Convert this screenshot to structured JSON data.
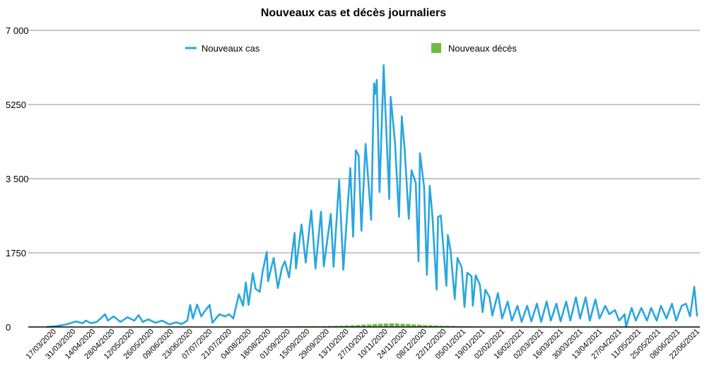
{
  "chart_data": {
    "type": "line",
    "title": "Nouveaux cas et décès journaliers",
    "xlabel": "",
    "ylabel": "",
    "ylim": [
      0,
      7000
    ],
    "yticks": [
      "0",
      "1750",
      "3 500",
      "5250",
      "7 000"
    ],
    "ytick_values": [
      0,
      1750,
      3500,
      5250,
      7000
    ],
    "grid": true,
    "legend_placement": "top",
    "x_unit": "days since start of series (one tick label every 14 days)",
    "x_range": [
      0,
      467
    ],
    "xticks": [
      "17/03/2020",
      "31/03/2020",
      "14/04/2020",
      "28/04/2020",
      "12/05/2020",
      "26/05/2020",
      "09/06/2020",
      "23/06/2020",
      "07/07/2020",
      "21/07/2020",
      "04/08/2020",
      "18/08/2020",
      "01/09/2020",
      "15/09/2020",
      "29/09/2020",
      "13/10/2020",
      "27/10/2020",
      "10/11/2020",
      "24/11/2020",
      "08/12/2020",
      "22/12/2020",
      "05/01/2021",
      "19/01/2021",
      "02/02/2021",
      "16/02/2021",
      "02/03/2021",
      "16/03/2021",
      "30/03/2021",
      "13/04/2021",
      "27/04/2021",
      "11/05/2021",
      "25/05/2021",
      "08/06/2021",
      "22/06/2021"
    ],
    "xtick_first_day": 4,
    "xtick_step_days": 14,
    "series": [
      {
        "name": "Nouveaux cas",
        "kind": "line",
        "color": "#2aa6df",
        "points": [
          [
            0,
            0
          ],
          [
            7,
            20
          ],
          [
            14,
            60
          ],
          [
            21,
            130
          ],
          [
            26,
            90
          ],
          [
            28,
            150
          ],
          [
            32,
            90
          ],
          [
            36,
            120
          ],
          [
            42,
            300
          ],
          [
            44,
            150
          ],
          [
            48,
            250
          ],
          [
            53,
            120
          ],
          [
            58,
            230
          ],
          [
            63,
            150
          ],
          [
            66,
            280
          ],
          [
            69,
            120
          ],
          [
            73,
            180
          ],
          [
            78,
            100
          ],
          [
            83,
            150
          ],
          [
            88,
            60
          ],
          [
            93,
            110
          ],
          [
            97,
            70
          ],
          [
            101,
            150
          ],
          [
            103,
            520
          ],
          [
            105,
            200
          ],
          [
            108,
            530
          ],
          [
            111,
            250
          ],
          [
            113,
            350
          ],
          [
            117,
            520
          ],
          [
            119,
            100
          ],
          [
            124,
            300
          ],
          [
            128,
            250
          ],
          [
            131,
            300
          ],
          [
            134,
            200
          ],
          [
            138,
            770
          ],
          [
            141,
            500
          ],
          [
            143,
            1050
          ],
          [
            145,
            520
          ],
          [
            148,
            1270
          ],
          [
            150,
            900
          ],
          [
            153,
            830
          ],
          [
            155,
            1300
          ],
          [
            158,
            1770
          ],
          [
            159,
            1080
          ],
          [
            163,
            1630
          ],
          [
            166,
            920
          ],
          [
            169,
            1400
          ],
          [
            171,
            1550
          ],
          [
            174,
            1170
          ],
          [
            178,
            2220
          ],
          [
            179,
            1380
          ],
          [
            183,
            2420
          ],
          [
            186,
            1520
          ],
          [
            190,
            2750
          ],
          [
            193,
            1380
          ],
          [
            197,
            2720
          ],
          [
            199,
            1430
          ],
          [
            204,
            2670
          ],
          [
            206,
            1420
          ],
          [
            210,
            3470
          ],
          [
            213,
            1350
          ],
          [
            218,
            3750
          ],
          [
            220,
            2130
          ],
          [
            222,
            4170
          ],
          [
            224,
            4050
          ],
          [
            226,
            2270
          ],
          [
            229,
            4320
          ],
          [
            233,
            2530
          ],
          [
            235,
            5750
          ],
          [
            236,
            5500
          ],
          [
            237,
            5830
          ],
          [
            239,
            3180
          ],
          [
            242,
            6180
          ],
          [
            243,
            5300
          ],
          [
            246,
            3020
          ],
          [
            247,
            5430
          ],
          [
            250,
            4400
          ],
          [
            253,
            2600
          ],
          [
            255,
            4970
          ],
          [
            257,
            4200
          ],
          [
            260,
            2550
          ],
          [
            262,
            3700
          ],
          [
            265,
            3400
          ],
          [
            267,
            1550
          ],
          [
            268,
            4100
          ],
          [
            271,
            3300
          ],
          [
            273,
            1230
          ],
          [
            275,
            3330
          ],
          [
            277,
            2600
          ],
          [
            280,
            880
          ],
          [
            281,
            2600
          ],
          [
            283,
            2630
          ],
          [
            287,
            970
          ],
          [
            288,
            2170
          ],
          [
            290,
            1800
          ],
          [
            293,
            660
          ],
          [
            295,
            1630
          ],
          [
            298,
            1400
          ],
          [
            300,
            470
          ],
          [
            302,
            1280
          ],
          [
            305,
            1200
          ],
          [
            306,
            500
          ],
          [
            308,
            1220
          ],
          [
            311,
            1000
          ],
          [
            313,
            350
          ],
          [
            315,
            880
          ],
          [
            318,
            700
          ],
          [
            320,
            270
          ],
          [
            324,
            800
          ],
          [
            327,
            200
          ],
          [
            331,
            600
          ],
          [
            334,
            150
          ],
          [
            338,
            500
          ],
          [
            341,
            120
          ],
          [
            345,
            500
          ],
          [
            348,
            130
          ],
          [
            352,
            550
          ],
          [
            355,
            120
          ],
          [
            359,
            600
          ],
          [
            362,
            150
          ],
          [
            366,
            550
          ],
          [
            369,
            130
          ],
          [
            373,
            600
          ],
          [
            376,
            150
          ],
          [
            380,
            700
          ],
          [
            383,
            200
          ],
          [
            387,
            700
          ],
          [
            390,
            150
          ],
          [
            394,
            650
          ],
          [
            397,
            200
          ],
          [
            401,
            500
          ],
          [
            404,
            300
          ],
          [
            408,
            400
          ],
          [
            411,
            150
          ],
          [
            415,
            300
          ],
          [
            416,
            0
          ],
          [
            420,
            450
          ],
          [
            423,
            150
          ],
          [
            427,
            450
          ],
          [
            431,
            150
          ],
          [
            434,
            450
          ],
          [
            438,
            150
          ],
          [
            441,
            500
          ],
          [
            445,
            200
          ],
          [
            449,
            550
          ],
          [
            452,
            150
          ],
          [
            456,
            500
          ],
          [
            459,
            550
          ],
          [
            462,
            250
          ],
          [
            465,
            950
          ],
          [
            467,
            250
          ]
        ]
      },
      {
        "name": "Nouveaux décès",
        "kind": "bar",
        "color": "#6dbd45",
        "points": [
          [
            154,
            10
          ],
          [
            158,
            12
          ],
          [
            162,
            10
          ],
          [
            166,
            14
          ],
          [
            170,
            12
          ],
          [
            174,
            15
          ],
          [
            178,
            14
          ],
          [
            182,
            18
          ],
          [
            186,
            16
          ],
          [
            190,
            20
          ],
          [
            194,
            18
          ],
          [
            198,
            22
          ],
          [
            202,
            25
          ],
          [
            206,
            28
          ],
          [
            210,
            30
          ],
          [
            214,
            35
          ],
          [
            218,
            40
          ],
          [
            222,
            45
          ],
          [
            226,
            55
          ],
          [
            230,
            60
          ],
          [
            234,
            70
          ],
          [
            238,
            75
          ],
          [
            242,
            80
          ],
          [
            246,
            85
          ],
          [
            250,
            80
          ],
          [
            254,
            75
          ],
          [
            258,
            70
          ],
          [
            262,
            60
          ],
          [
            266,
            55
          ],
          [
            270,
            45
          ],
          [
            274,
            40
          ],
          [
            278,
            35
          ],
          [
            282,
            30
          ],
          [
            286,
            28
          ],
          [
            290,
            25
          ],
          [
            294,
            20
          ],
          [
            298,
            18
          ],
          [
            302,
            15
          ],
          [
            306,
            12
          ],
          [
            310,
            10
          ],
          [
            314,
            8
          ]
        ]
      }
    ]
  }
}
